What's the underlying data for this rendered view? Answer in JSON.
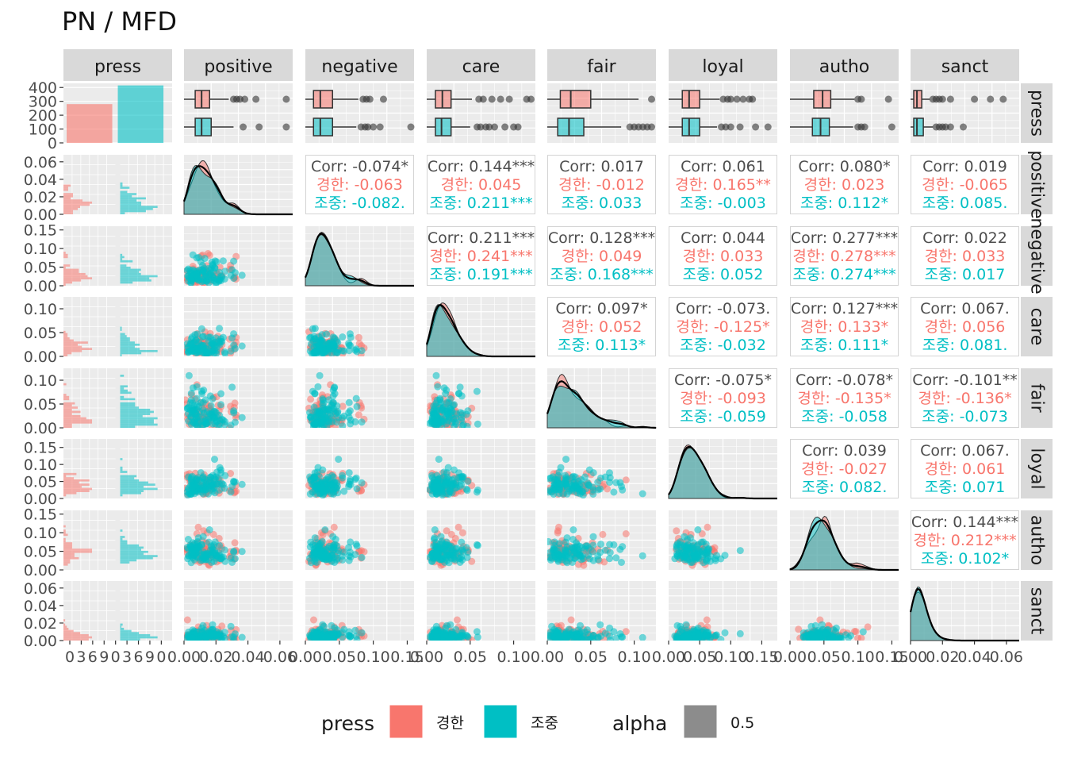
{
  "title": "PN / MFD",
  "colors": {
    "group_a": "#F8766D",
    "group_b": "#00BFC4",
    "alpha_swatch": "#8C8C8C",
    "panel_bg": "#EBEBEB",
    "strip_bg": "#D9D9D9",
    "grid": "#FFFFFF",
    "text": "#4D4D4D"
  },
  "legend": {
    "position": "bottom",
    "press_title": "press",
    "press_items": [
      "경한",
      "조중"
    ],
    "alpha_title": "alpha",
    "alpha_items": [
      "0.5"
    ]
  },
  "chart_data": {
    "type": "scatter",
    "variables": [
      "press",
      "positive",
      "negative",
      "care",
      "fair",
      "loyal",
      "autho",
      "sanct"
    ],
    "grid": true,
    "press_counts": [
      {
        "group": "경한",
        "count": 280
      },
      {
        "group": "조중",
        "count": 415
      }
    ],
    "press_axis": {
      "ylim": [
        0,
        430
      ],
      "yticks": [
        "0",
        "100",
        "200",
        "300",
        "400"
      ]
    },
    "axes": {
      "positive": {
        "lim": [
          0,
          0.068
        ],
        "ticks": [
          0,
          0.02,
          0.04,
          0.06
        ],
        "tick_labels": [
          "0.00",
          "0.02",
          "0.04",
          "0.06"
        ]
      },
      "negative": {
        "lim": [
          0,
          0.16
        ],
        "ticks": [
          0,
          0.05,
          0.1,
          0.15
        ],
        "tick_labels": [
          "0.00",
          "0.05",
          "0.10",
          "0.15"
        ]
      },
      "care": {
        "lim": [
          0,
          0.125
        ],
        "ticks": [
          0,
          0.05,
          0.1
        ],
        "tick_labels": [
          "0.00",
          "0.05",
          "0.10"
        ]
      },
      "fair": {
        "lim": [
          0,
          0.125
        ],
        "ticks": [
          0,
          0.05,
          0.1
        ],
        "tick_labels": [
          "0.00",
          "0.05",
          "0.10"
        ]
      },
      "loyal": {
        "lim": [
          0,
          0.175
        ],
        "ticks": [
          0,
          0.05,
          0.1,
          0.15
        ],
        "tick_labels": [
          "0.00",
          "0.05",
          "0.10",
          "0.15"
        ]
      },
      "autho": {
        "lim": [
          0,
          0.16
        ],
        "ticks": [
          0,
          0.05,
          0.1,
          0.15
        ],
        "tick_labels": [
          "0.00",
          "0.05",
          "0.10",
          "0.15"
        ]
      },
      "sanct": {
        "lim": [
          0,
          0.068
        ],
        "ticks": [
          0,
          0.02,
          0.04,
          0.06
        ],
        "tick_labels": [
          "0.00",
          "0.02",
          "0.04",
          "0.06"
        ]
      }
    },
    "press_hist_xticks": [
      "0",
      "3",
      "6",
      "9",
      "0",
      "3",
      "6",
      "9",
      "0"
    ],
    "correlations": [
      {
        "row": "positive",
        "col": "negative",
        "corr": "Corr: -0.074*",
        "a": "경한: -0.063",
        "b": "조중: -0.082."
      },
      {
        "row": "positive",
        "col": "care",
        "corr": "Corr: 0.144***",
        "a": "경한: 0.045",
        "b": "조중: 0.211***"
      },
      {
        "row": "positive",
        "col": "fair",
        "corr": "Corr: 0.017",
        "a": "경한: -0.012",
        "b": "조중: 0.033"
      },
      {
        "row": "positive",
        "col": "loyal",
        "corr": "Corr: 0.061",
        "a": "경한: 0.165**",
        "b": "조중: -0.003"
      },
      {
        "row": "positive",
        "col": "autho",
        "corr": "Corr: 0.080*",
        "a": "경한: 0.023",
        "b": "조중: 0.112*"
      },
      {
        "row": "positive",
        "col": "sanct",
        "corr": "Corr: 0.019",
        "a": "경한: -0.065",
        "b": "조중: 0.085."
      },
      {
        "row": "negative",
        "col": "care",
        "corr": "Corr: 0.211***",
        "a": "경한: 0.241***",
        "b": "조중: 0.191***"
      },
      {
        "row": "negative",
        "col": "fair",
        "corr": "Corr: 0.128***",
        "a": "경한: 0.049",
        "b": "조중: 0.168***"
      },
      {
        "row": "negative",
        "col": "loyal",
        "corr": "Corr: 0.044",
        "a": "경한: 0.033",
        "b": "조중: 0.052"
      },
      {
        "row": "negative",
        "col": "autho",
        "corr": "Corr: 0.277***",
        "a": "경한: 0.278***",
        "b": "조중: 0.274***"
      },
      {
        "row": "negative",
        "col": "sanct",
        "corr": "Corr: 0.022",
        "a": "경한: 0.033",
        "b": "조중: 0.017"
      },
      {
        "row": "care",
        "col": "fair",
        "corr": "Corr: 0.097*",
        "a": "경한: 0.052",
        "b": "조중: 0.113*"
      },
      {
        "row": "care",
        "col": "loyal",
        "corr": "Corr: -0.073.",
        "a": "경한: -0.125*",
        "b": "조중: -0.032"
      },
      {
        "row": "care",
        "col": "autho",
        "corr": "Corr: 0.127***",
        "a": "경한: 0.133*",
        "b": "조중: 0.111*"
      },
      {
        "row": "care",
        "col": "sanct",
        "corr": "Corr: 0.067.",
        "a": "경한: 0.056",
        "b": "조중: 0.081."
      },
      {
        "row": "fair",
        "col": "loyal",
        "corr": "Corr: -0.075*",
        "a": "경한: -0.093",
        "b": "조중: -0.059"
      },
      {
        "row": "fair",
        "col": "autho",
        "corr": "Corr: -0.078*",
        "a": "경한: -0.135*",
        "b": "조중: -0.058"
      },
      {
        "row": "fair",
        "col": "sanct",
        "corr": "Corr: -0.101**",
        "a": "경한: -0.136*",
        "b": "조중: -0.073"
      },
      {
        "row": "loyal",
        "col": "autho",
        "corr": "Corr: 0.039",
        "a": "경한: -0.027",
        "b": "조중: 0.082."
      },
      {
        "row": "loyal",
        "col": "sanct",
        "corr": "Corr: 0.067.",
        "a": "경한: 0.061",
        "b": "조중: 0.071"
      },
      {
        "row": "autho",
        "col": "sanct",
        "corr": "Corr: 0.144***",
        "a": "경한: 0.212***",
        "b": "조중: 0.102*"
      }
    ],
    "boxplots": [
      {
        "var": "positive",
        "경한": {
          "q1": 0.007,
          "median": 0.011,
          "q3": 0.016,
          "whisker_hi": 0.028,
          "outliers": [
            0.031,
            0.033,
            0.035,
            0.038,
            0.045,
            0.064
          ]
        },
        "조중": {
          "q1": 0.007,
          "median": 0.011,
          "q3": 0.017,
          "whisker_hi": 0.031,
          "outliers": [
            0.037,
            0.047,
            0.064
          ]
        }
      },
      {
        "var": "negative",
        "경한": {
          "q1": 0.012,
          "median": 0.022,
          "q3": 0.04,
          "whisker_hi": 0.078,
          "outliers": [
            0.085,
            0.09,
            0.095,
            0.115
          ]
        },
        "조중": {
          "q1": 0.012,
          "median": 0.022,
          "q3": 0.04,
          "whisker_hi": 0.075,
          "outliers": [
            0.082,
            0.088,
            0.092,
            0.1,
            0.11,
            0.16
          ]
        }
      },
      {
        "var": "care",
        "경한": {
          "q1": 0.01,
          "median": 0.018,
          "q3": 0.028,
          "whisker_hi": 0.052,
          "outliers": [
            0.06,
            0.065,
            0.075,
            0.085,
            0.095,
            0.115,
            0.12
          ]
        },
        "조중": {
          "q1": 0.01,
          "median": 0.017,
          "q3": 0.028,
          "whisker_hi": 0.05,
          "outliers": [
            0.058,
            0.062,
            0.068,
            0.072,
            0.078,
            0.09,
            0.1,
            0.105
          ]
        }
      },
      {
        "var": "fair",
        "경한": {
          "q1": 0.015,
          "median": 0.027,
          "q3": 0.05,
          "whisker_hi": 0.105,
          "outliers": [
            0.12
          ]
        },
        "조중": {
          "q1": 0.012,
          "median": 0.025,
          "q3": 0.042,
          "whisker_hi": 0.085,
          "outliers": [
            0.095,
            0.1,
            0.105,
            0.11,
            0.115,
            0.12
          ]
        }
      },
      {
        "var": "loyal",
        "경한": {
          "q1": 0.022,
          "median": 0.033,
          "q3": 0.05,
          "whisker_hi": 0.082,
          "outliers": [
            0.088,
            0.095,
            0.1,
            0.11,
            0.12,
            0.13,
            0.135
          ]
        },
        "조중": {
          "q1": 0.022,
          "median": 0.033,
          "q3": 0.05,
          "whisker_hi": 0.078,
          "outliers": [
            0.085,
            0.092,
            0.1,
            0.115,
            0.14,
            0.16
          ]
        }
      },
      {
        "var": "autho",
        "경한": {
          "q1": 0.035,
          "median": 0.048,
          "q3": 0.06,
          "whisker_hi": 0.095,
          "outliers": [
            0.1,
            0.105,
            0.145
          ]
        },
        "조중": {
          "q1": 0.033,
          "median": 0.045,
          "q3": 0.058,
          "whisker_hi": 0.093,
          "outliers": [
            0.1,
            0.105,
            0.11,
            0.15
          ]
        }
      },
      {
        "var": "sanct",
        "경한": {
          "q1": 0.002,
          "median": 0.004,
          "q3": 0.007,
          "whisker_hi": 0.012,
          "outliers": [
            0.014,
            0.016,
            0.018,
            0.02,
            0.025,
            0.04,
            0.05,
            0.058
          ]
        },
        "조중": {
          "q1": 0.002,
          "median": 0.004,
          "q3": 0.008,
          "whisker_hi": 0.014,
          "outliers": [
            0.016,
            0.018,
            0.02,
            0.022,
            0.025,
            0.033
          ]
        }
      }
    ]
  }
}
